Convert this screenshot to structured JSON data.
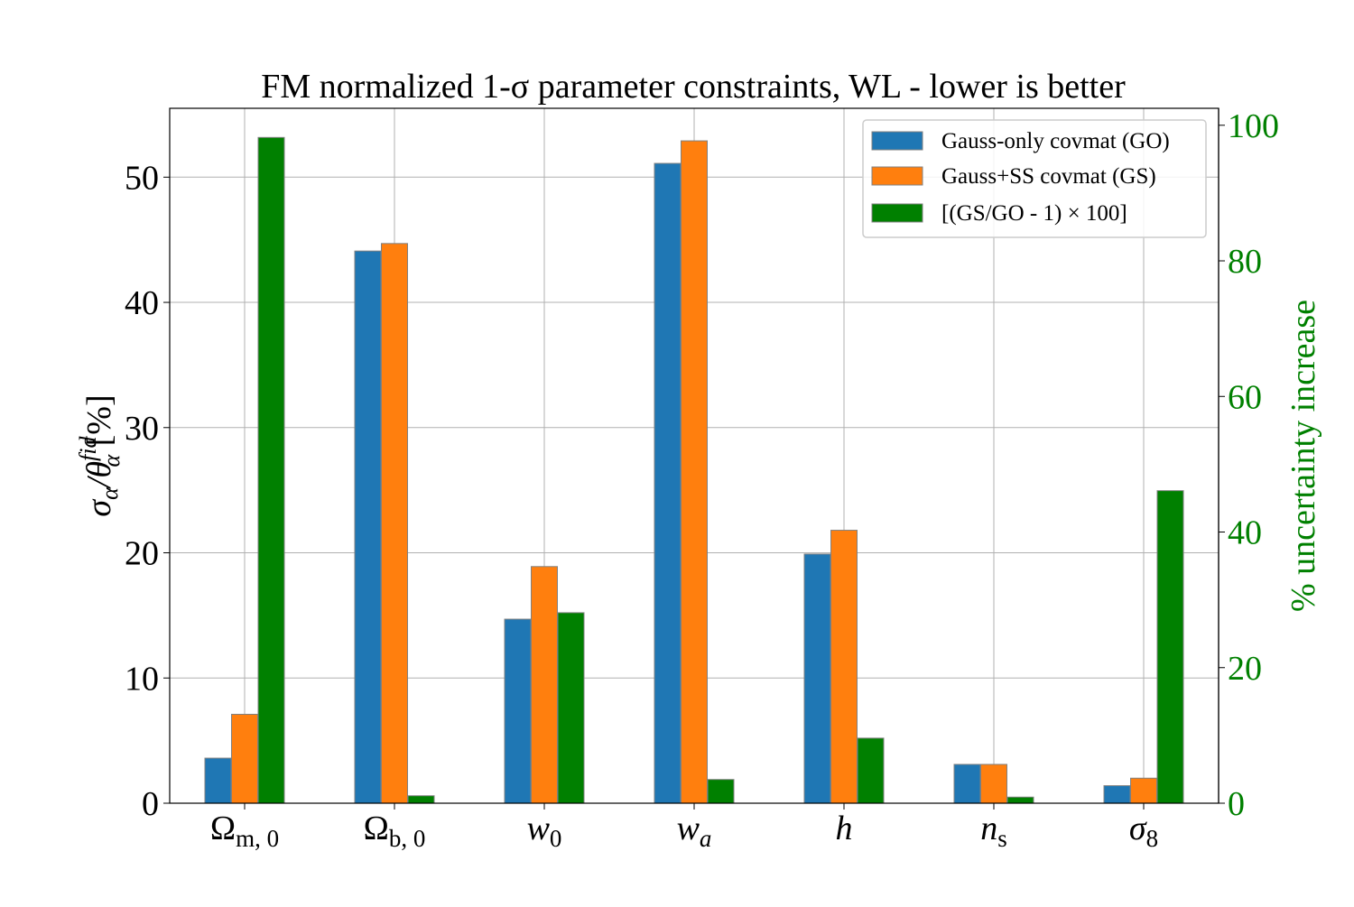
{
  "chart_data": {
    "type": "bar",
    "title": "FM normalized 1-σ parameter constraints, WL - lower is better",
    "ylabel_left": "σα/θαfid [%]",
    "ylabel_left_parts": {
      "main": "σ",
      "sub1": "α",
      "slash": "/θ",
      "sup": "fid",
      "sub2": "α",
      "tail": " [%]"
    },
    "ylabel_right": "% uncertainty increase",
    "categories": [
      "Ωm,0",
      "Ωb,0",
      "w0",
      "wa",
      "h",
      "ns",
      "σ8"
    ],
    "category_parts": [
      {
        "main": "Ω",
        "sub": "m, 0"
      },
      {
        "main": "Ω",
        "sub": "b, 0"
      },
      {
        "main": "w",
        "sub": "0"
      },
      {
        "main": "w",
        "sub": "a"
      },
      {
        "main": "h",
        "sub": ""
      },
      {
        "main": "n",
        "sub": "s"
      },
      {
        "main": "σ",
        "sub": "8"
      }
    ],
    "ylim_left": [
      0,
      55.5
    ],
    "yticks_left": [
      "0",
      "10",
      "20",
      "30",
      "40",
      "50"
    ],
    "ylim_right": [
      0,
      102.5
    ],
    "yticks_right": [
      "0",
      "20",
      "40",
      "60",
      "80",
      "100"
    ],
    "grid": true,
    "legend_position": "top-right",
    "series": [
      {
        "name": "Gauss-only covmat (GO)",
        "axis": "left",
        "color": "#1f77b4",
        "values": [
          3.6,
          44.1,
          14.7,
          51.1,
          19.9,
          3.1,
          1.4
        ]
      },
      {
        "name": "Gauss+SS covmat (GS)",
        "axis": "left",
        "color": "#ff7f0e",
        "values": [
          7.1,
          44.7,
          18.9,
          52.9,
          21.8,
          3.1,
          2.0
        ]
      },
      {
        "name": "[(GS/GO - 1) × 100]",
        "axis": "right",
        "color": "#008000",
        "values": [
          98.2,
          1.1,
          28.1,
          3.5,
          9.6,
          0.9,
          46.1
        ]
      }
    ]
  }
}
